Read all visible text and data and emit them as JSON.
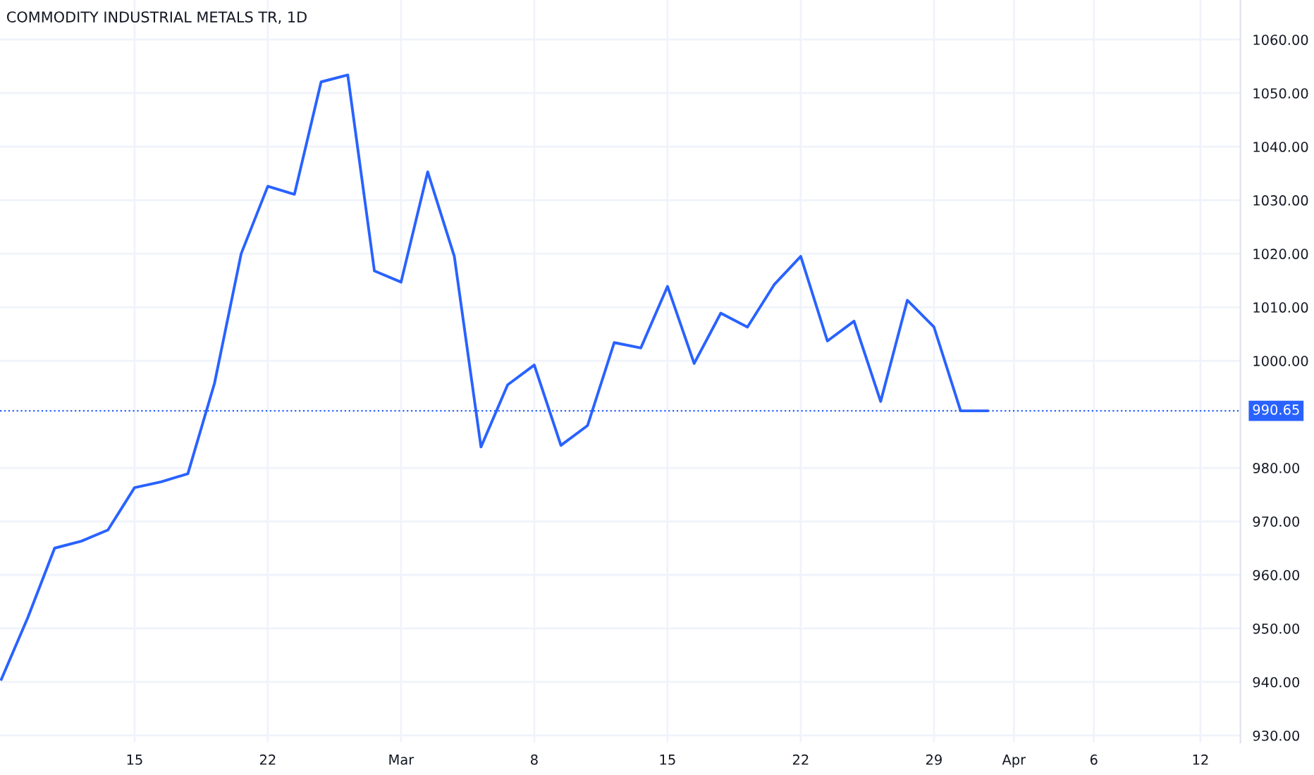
{
  "chart_data": {
    "type": "line",
    "title": "COMMODITY INDUSTRIAL METALS TR, 1D",
    "categories": [
      null,
      null,
      null,
      null,
      null,
      "15",
      null,
      null,
      null,
      null,
      "22",
      null,
      null,
      null,
      null,
      "Mar",
      null,
      null,
      null,
      null,
      "8",
      null,
      null,
      null,
      null,
      "15",
      null,
      null,
      null,
      null,
      "22",
      null,
      null,
      null,
      null,
      "29",
      null,
      null,
      "Apr",
      null,
      null,
      "6",
      null,
      null,
      null,
      "12",
      null
    ],
    "series": [
      {
        "color": "#2962ff",
        "values": [
          940.5,
          952.1,
          965.0,
          966.3,
          968.4,
          976.3,
          977.4,
          978.9,
          995.8,
          1020.0,
          1032.6,
          1031.1,
          1052.1,
          1053.4,
          1016.8,
          1014.7,
          1035.3,
          1019.5,
          983.9,
          995.5,
          999.2,
          984.2,
          987.9,
          1003.4,
          1002.4,
          1013.9,
          999.5,
          1008.9,
          1006.3,
          1014.2,
          1019.5,
          1003.7,
          1007.4,
          992.4,
          1011.3,
          1006.3,
          990.65,
          990.65,
          null,
          null,
          null,
          null,
          null,
          null,
          null,
          null,
          null
        ]
      }
    ],
    "ylim": [
      928.7,
      1067.4
    ],
    "yticks": [
      {
        "value": 930,
        "label": "930.00"
      },
      {
        "value": 940,
        "label": "940.00"
      },
      {
        "value": 950,
        "label": "950.00"
      },
      {
        "value": 960,
        "label": "960.00"
      },
      {
        "value": 970,
        "label": "970.00"
      },
      {
        "value": 980,
        "label": "980.00"
      },
      {
        "value": 1000,
        "label": "1000.00"
      },
      {
        "value": 1010,
        "label": "1010.00"
      },
      {
        "value": 1020,
        "label": "1020.00"
      },
      {
        "value": 1030,
        "label": "1030.00"
      },
      {
        "value": 1040,
        "label": "1040.00"
      },
      {
        "value": 1050,
        "label": "1050.00"
      },
      {
        "value": 1060,
        "label": "1060.00"
      }
    ],
    "ref_lines": [
      {
        "axis": "y",
        "value": 990.65,
        "label": "990.65",
        "color": "#2962ff",
        "line_style": "dotted"
      }
    ],
    "grid": true,
    "marker": "none",
    "line_style": "solid"
  }
}
